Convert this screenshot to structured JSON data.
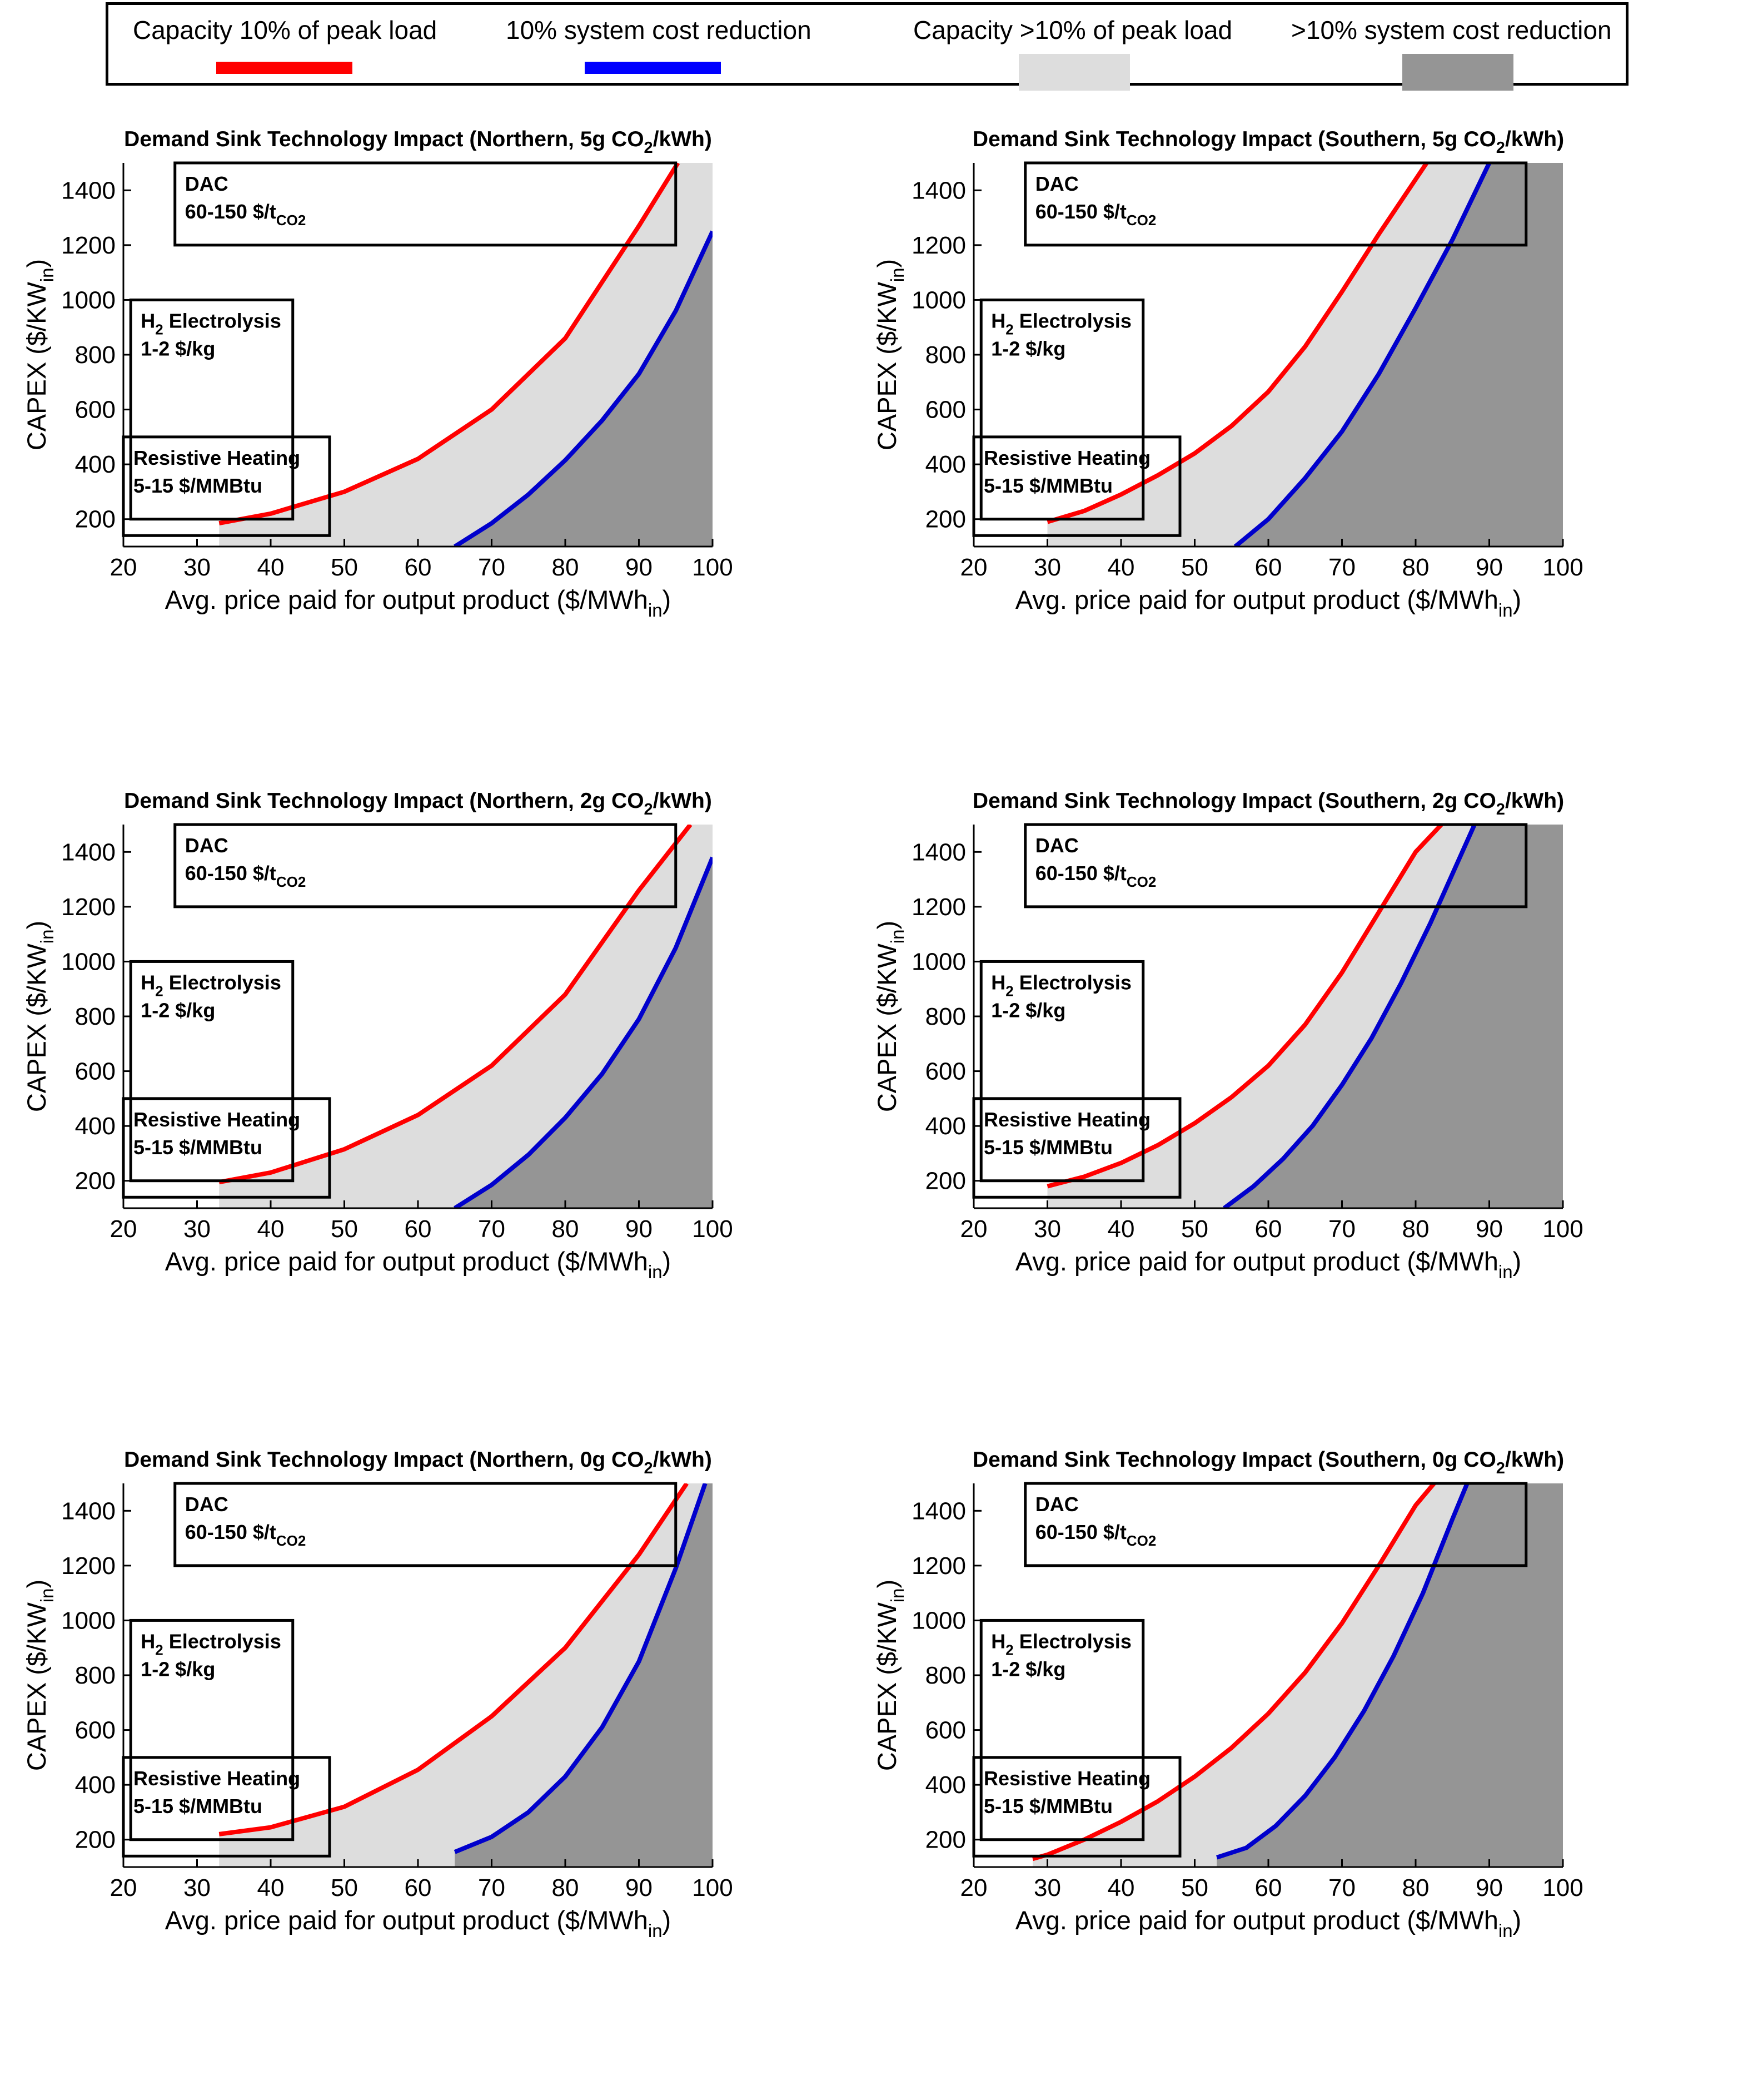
{
  "colors": {
    "capacity_line": "#ff0000",
    "cost_line": "#0000cc",
    "capacity_fill": "#dddddd",
    "cost_fill": "#959595",
    "legend_cost_line": "#0000ff"
  },
  "legend": {
    "items": [
      {
        "label": "Capacity 10% of peak load",
        "kind": "line",
        "color": "#ff0000"
      },
      {
        "label": "10% system cost reduction",
        "kind": "line",
        "color": "#0000ff"
      },
      {
        "label": "Capacity >10% of peak load",
        "kind": "patch",
        "color": "#dddddd"
      },
      {
        "label": ">10% system cost reduction",
        "kind": "patch",
        "color": "#959595"
      }
    ]
  },
  "chart_data": [
    {
      "type": "line",
      "title": "Demand Sink Technology Impact (Northern, 5g CO2/kWh)",
      "title_parts": {
        "pre": "Demand Sink Technology Impact (Northern, 5g CO",
        "sub": "2",
        "post": "/kWh)"
      },
      "xlabel_parts": {
        "pre": "Avg. price paid for output product ($/MWh",
        "sub": "in",
        "post": ")"
      },
      "ylabel_parts": {
        "pre": "CAPEX ($/KW",
        "sub": "in",
        "post": ")"
      },
      "xlim": [
        20,
        100
      ],
      "ylim": [
        100,
        1500
      ],
      "xticks": [
        20,
        30,
        40,
        50,
        60,
        70,
        80,
        90,
        100
      ],
      "yticks": [
        200,
        400,
        600,
        800,
        1000,
        1200,
        1400
      ],
      "series": [
        {
          "name": "Capacity 10% of peak load",
          "x": [
            33,
            40,
            50,
            60,
            70,
            80,
            90,
            95.3
          ],
          "y": [
            185,
            220,
            300,
            420,
            600,
            860,
            1270,
            1500
          ]
        },
        {
          "name": "10% system cost reduction",
          "x": [
            65,
            70,
            75,
            80,
            85,
            90,
            95,
            100
          ],
          "y": [
            100,
            185,
            290,
            415,
            560,
            730,
            960,
            1250
          ]
        }
      ],
      "annotations": [
        {
          "label": "DAC",
          "range_label_parts": {
            "pre": "60-150 $/t",
            "sub": "CO2",
            "post": ""
          },
          "x_range": [
            27,
            95
          ],
          "y_range": [
            1200,
            1500
          ]
        },
        {
          "label_parts": {
            "pre": "H",
            "sub": "2",
            "post": " Electrolysis"
          },
          "range_label": "1-2 $/kg",
          "x_range": [
            21,
            43
          ],
          "y_range": [
            200,
            1000
          ]
        },
        {
          "label": "Resistive Heating",
          "range_label": "5-15 $/MMBtu",
          "x_range": [
            20,
            48
          ],
          "y_range": [
            140,
            500
          ]
        }
      ]
    },
    {
      "type": "line",
      "title": "Demand Sink Technology Impact (Southern, 5g CO2/kWh)",
      "title_parts": {
        "pre": "Demand Sink Technology Impact (Southern, 5g CO",
        "sub": "2",
        "post": "/kWh)"
      },
      "xlabel_parts": {
        "pre": "Avg. price paid for output product ($/MWh",
        "sub": "in",
        "post": ")"
      },
      "ylabel_parts": {
        "pre": "CAPEX ($/KW",
        "sub": "in",
        "post": ")"
      },
      "xlim": [
        20,
        100
      ],
      "ylim": [
        100,
        1500
      ],
      "xticks": [
        20,
        30,
        40,
        50,
        60,
        70,
        80,
        90,
        100
      ],
      "yticks": [
        200,
        400,
        600,
        800,
        1000,
        1200,
        1400
      ],
      "series": [
        {
          "name": "Capacity 10% of peak load",
          "x": [
            30,
            35,
            40,
            45,
            50,
            55,
            60,
            65,
            70,
            75,
            80,
            81.5
          ],
          "y": [
            190,
            230,
            290,
            360,
            440,
            540,
            665,
            830,
            1030,
            1240,
            1440,
            1500
          ]
        },
        {
          "name": "10% system cost reduction",
          "x": [
            55.5,
            60,
            65,
            70,
            75,
            80,
            85,
            90
          ],
          "y": [
            100,
            200,
            350,
            520,
            730,
            970,
            1220,
            1500
          ]
        }
      ],
      "annotations": [
        {
          "label": "DAC",
          "range_label_parts": {
            "pre": "60-150 $/t",
            "sub": "CO2",
            "post": ""
          },
          "x_range": [
            27,
            95
          ],
          "y_range": [
            1200,
            1500
          ]
        },
        {
          "label_parts": {
            "pre": "H",
            "sub": "2",
            "post": " Electrolysis"
          },
          "range_label": "1-2 $/kg",
          "x_range": [
            21,
            43
          ],
          "y_range": [
            200,
            1000
          ]
        },
        {
          "label": "Resistive Heating",
          "range_label": "5-15 $/MMBtu",
          "x_range": [
            20,
            48
          ],
          "y_range": [
            140,
            500
          ]
        }
      ]
    },
    {
      "type": "line",
      "title": "Demand Sink Technology Impact (Northern, 2g CO2/kWh)",
      "title_parts": {
        "pre": "Demand Sink Technology Impact (Northern, 2g CO",
        "sub": "2",
        "post": "/kWh)"
      },
      "xlabel_parts": {
        "pre": "Avg. price paid for output product ($/MWh",
        "sub": "in",
        "post": ")"
      },
      "ylabel_parts": {
        "pre": "CAPEX ($/KW",
        "sub": "in",
        "post": ")"
      },
      "xlim": [
        20,
        100
      ],
      "ylim": [
        100,
        1500
      ],
      "xticks": [
        20,
        30,
        40,
        50,
        60,
        70,
        80,
        90,
        100
      ],
      "yticks": [
        200,
        400,
        600,
        800,
        1000,
        1200,
        1400
      ],
      "series": [
        {
          "name": "Capacity 10% of peak load",
          "x": [
            33,
            40,
            50,
            60,
            70,
            80,
            90,
            97
          ],
          "y": [
            195,
            230,
            315,
            440,
            620,
            880,
            1260,
            1500
          ]
        },
        {
          "name": "10% system cost reduction",
          "x": [
            65,
            70,
            75,
            80,
            85,
            90,
            95,
            100
          ],
          "y": [
            100,
            185,
            295,
            430,
            590,
            790,
            1050,
            1380
          ]
        }
      ],
      "annotations": [
        {
          "label": "DAC",
          "range_label_parts": {
            "pre": "60-150 $/t",
            "sub": "CO2",
            "post": ""
          },
          "x_range": [
            27,
            95
          ],
          "y_range": [
            1200,
            1500
          ]
        },
        {
          "label_parts": {
            "pre": "H",
            "sub": "2",
            "post": " Electrolysis"
          },
          "range_label": "1-2 $/kg",
          "x_range": [
            21,
            43
          ],
          "y_range": [
            200,
            1000
          ]
        },
        {
          "label": "Resistive Heating",
          "range_label": "5-15 $/MMBtu",
          "x_range": [
            20,
            48
          ],
          "y_range": [
            140,
            500
          ]
        }
      ]
    },
    {
      "type": "line",
      "title": "Demand Sink Technology Impact (Southern, 2g CO2/kWh)",
      "title_parts": {
        "pre": "Demand Sink Technology Impact (Southern, 2g CO",
        "sub": "2",
        "post": "/kWh)"
      },
      "xlabel_parts": {
        "pre": "Avg. price paid for output product ($/MWh",
        "sub": "in",
        "post": ")"
      },
      "ylabel_parts": {
        "pre": "CAPEX ($/KW",
        "sub": "in",
        "post": ")"
      },
      "xlim": [
        20,
        100
      ],
      "ylim": [
        100,
        1500
      ],
      "xticks": [
        20,
        30,
        40,
        50,
        60,
        70,
        80,
        90,
        100
      ],
      "yticks": [
        200,
        400,
        600,
        800,
        1000,
        1200,
        1400
      ],
      "series": [
        {
          "name": "Capacity 10% of peak load",
          "x": [
            30,
            35,
            40,
            45,
            50,
            55,
            60,
            65,
            70,
            75,
            80,
            83.5
          ],
          "y": [
            180,
            215,
            265,
            330,
            410,
            505,
            620,
            770,
            960,
            1180,
            1400,
            1500
          ]
        },
        {
          "name": "10% system cost reduction",
          "x": [
            54,
            58,
            62,
            66,
            70,
            74,
            78,
            82,
            86,
            88
          ],
          "y": [
            100,
            180,
            280,
            400,
            550,
            720,
            920,
            1140,
            1380,
            1500
          ]
        }
      ],
      "annotations": [
        {
          "label": "DAC",
          "range_label_parts": {
            "pre": "60-150 $/t",
            "sub": "CO2",
            "post": ""
          },
          "x_range": [
            27,
            95
          ],
          "y_range": [
            1200,
            1500
          ]
        },
        {
          "label_parts": {
            "pre": "H",
            "sub": "2",
            "post": " Electrolysis"
          },
          "range_label": "1-2 $/kg",
          "x_range": [
            21,
            43
          ],
          "y_range": [
            200,
            1000
          ]
        },
        {
          "label": "Resistive Heating",
          "range_label": "5-15 $/MMBtu",
          "x_range": [
            20,
            48
          ],
          "y_range": [
            140,
            500
          ]
        }
      ]
    },
    {
      "type": "line",
      "title": "Demand Sink Technology Impact (Northern, 0g CO2/kWh)",
      "title_parts": {
        "pre": "Demand Sink Technology Impact (Northern, 0g CO",
        "sub": "2",
        "post": "/kWh)"
      },
      "xlabel_parts": {
        "pre": "Avg. price paid for output product ($/MWh",
        "sub": "in",
        "post": ")"
      },
      "ylabel_parts": {
        "pre": "CAPEX ($/KW",
        "sub": "in",
        "post": ")"
      },
      "xlim": [
        20,
        100
      ],
      "ylim": [
        100,
        1500
      ],
      "xticks": [
        20,
        30,
        40,
        50,
        60,
        70,
        80,
        90,
        100
      ],
      "yticks": [
        200,
        400,
        600,
        800,
        1000,
        1200,
        1400
      ],
      "series": [
        {
          "name": "Capacity 10% of peak load",
          "x": [
            33,
            40,
            50,
            60,
            70,
            80,
            90,
            96.5
          ],
          "y": [
            220,
            245,
            320,
            455,
            650,
            900,
            1240,
            1500
          ]
        },
        {
          "name": "10% system cost reduction",
          "x": [
            65,
            70,
            75,
            80,
            85,
            90,
            95,
            99
          ],
          "y": [
            155,
            210,
            300,
            430,
            610,
            850,
            1190,
            1500
          ]
        }
      ],
      "annotations": [
        {
          "label": "DAC",
          "range_label_parts": {
            "pre": "60-150 $/t",
            "sub": "CO2",
            "post": ""
          },
          "x_range": [
            27,
            95
          ],
          "y_range": [
            1200,
            1500
          ]
        },
        {
          "label_parts": {
            "pre": "H",
            "sub": "2",
            "post": " Electrolysis"
          },
          "range_label": "1-2 $/kg",
          "x_range": [
            21,
            43
          ],
          "y_range": [
            200,
            1000
          ]
        },
        {
          "label": "Resistive Heating",
          "range_label": "5-15 $/MMBtu",
          "x_range": [
            20,
            48
          ],
          "y_range": [
            140,
            500
          ]
        }
      ]
    },
    {
      "type": "line",
      "title": "Demand Sink Technology Impact (Southern, 0g CO2/kWh)",
      "title_parts": {
        "pre": "Demand Sink Technology Impact (Southern, 0g CO",
        "sub": "2",
        "post": "/kWh)"
      },
      "xlabel_parts": {
        "pre": "Avg. price paid for output product ($/MWh",
        "sub": "in",
        "post": ")"
      },
      "ylabel_parts": {
        "pre": "CAPEX ($/KW",
        "sub": "in",
        "post": ")"
      },
      "xlim": [
        20,
        100
      ],
      "ylim": [
        100,
        1500
      ],
      "xticks": [
        20,
        30,
        40,
        50,
        60,
        70,
        80,
        90,
        100
      ],
      "yticks": [
        200,
        400,
        600,
        800,
        1000,
        1200,
        1400
      ],
      "series": [
        {
          "name": "Capacity 10% of peak load",
          "x": [
            28,
            30,
            35,
            40,
            45,
            50,
            55,
            60,
            65,
            70,
            75,
            80,
            82.5
          ],
          "y": [
            130,
            145,
            200,
            265,
            340,
            430,
            535,
            660,
            810,
            990,
            1200,
            1420,
            1500
          ]
        },
        {
          "name": "10% system cost reduction",
          "x": [
            53,
            57,
            61,
            65,
            69,
            73,
            77,
            81,
            85,
            87
          ],
          "y": [
            135,
            170,
            250,
            360,
            500,
            670,
            870,
            1100,
            1370,
            1500
          ]
        }
      ],
      "annotations": [
        {
          "label": "DAC",
          "range_label_parts": {
            "pre": "60-150 $/t",
            "sub": "CO2",
            "post": ""
          },
          "x_range": [
            27,
            95
          ],
          "y_range": [
            1200,
            1500
          ]
        },
        {
          "label_parts": {
            "pre": "H",
            "sub": "2",
            "post": " Electrolysis"
          },
          "range_label": "1-2 $/kg",
          "x_range": [
            21,
            43
          ],
          "y_range": [
            200,
            1000
          ]
        },
        {
          "label": "Resistive Heating",
          "range_label": "5-15 $/MMBtu",
          "x_range": [
            20,
            48
          ],
          "y_range": [
            140,
            500
          ]
        }
      ]
    }
  ]
}
